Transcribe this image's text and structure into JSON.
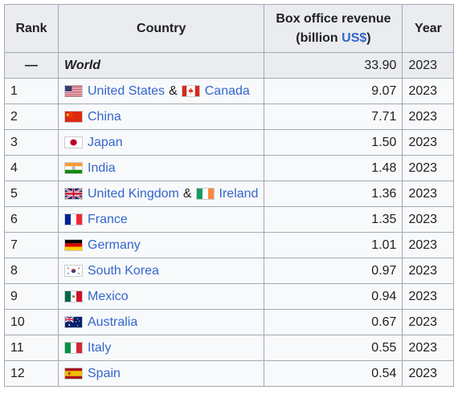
{
  "headers": {
    "rank": "Rank",
    "country": "Country",
    "revenue_line1": "Box office revenue",
    "revenue_line2_prefix": "(billion ",
    "revenue_line2_link": "US$",
    "revenue_line2_suffix": ")",
    "year": "Year"
  },
  "world": {
    "rank": "—",
    "label": "World",
    "revenue": "33.90",
    "year": "2023"
  },
  "rows": [
    {
      "rank": "1",
      "countries": [
        "United States",
        "Canada"
      ],
      "joiner": "&",
      "flags": [
        "flag-us-icon",
        "flag-ca-icon"
      ],
      "revenue": "9.07",
      "year": "2023"
    },
    {
      "rank": "2",
      "countries": [
        "China"
      ],
      "flags": [
        "flag-cn-icon"
      ],
      "revenue": "7.71",
      "year": "2023"
    },
    {
      "rank": "3",
      "countries": [
        "Japan"
      ],
      "flags": [
        "flag-jp-icon"
      ],
      "revenue": "1.50",
      "year": "2023"
    },
    {
      "rank": "4",
      "countries": [
        "India"
      ],
      "flags": [
        "flag-in-icon"
      ],
      "revenue": "1.48",
      "year": "2023"
    },
    {
      "rank": "5",
      "countries": [
        "United Kingdom",
        "Ireland"
      ],
      "joiner": "&",
      "flags": [
        "flag-gb-icon",
        "flag-ie-icon"
      ],
      "revenue": "1.36",
      "year": "2023"
    },
    {
      "rank": "6",
      "countries": [
        "France"
      ],
      "flags": [
        "flag-fr-icon"
      ],
      "revenue": "1.35",
      "year": "2023"
    },
    {
      "rank": "7",
      "countries": [
        "Germany"
      ],
      "flags": [
        "flag-de-icon"
      ],
      "revenue": "1.01",
      "year": "2023"
    },
    {
      "rank": "8",
      "countries": [
        "South Korea"
      ],
      "flags": [
        "flag-kr-icon"
      ],
      "revenue": "0.97",
      "year": "2023"
    },
    {
      "rank": "9",
      "countries": [
        "Mexico"
      ],
      "flags": [
        "flag-mx-icon"
      ],
      "revenue": "0.94",
      "year": "2023"
    },
    {
      "rank": "10",
      "countries": [
        "Australia"
      ],
      "flags": [
        "flag-au-icon"
      ],
      "revenue": "0.67",
      "year": "2023"
    },
    {
      "rank": "11",
      "countries": [
        "Italy"
      ],
      "flags": [
        "flag-it-icon"
      ],
      "revenue": "0.55",
      "year": "2023"
    },
    {
      "rank": "12",
      "countries": [
        "Spain"
      ],
      "flags": [
        "flag-es-icon"
      ],
      "revenue": "0.54",
      "year": "2023"
    }
  ],
  "colors": {
    "link": "#3366cc",
    "header_bg": "#eaecf0",
    "cell_bg": "#f8f9fa",
    "border": "#a2a9b1"
  }
}
